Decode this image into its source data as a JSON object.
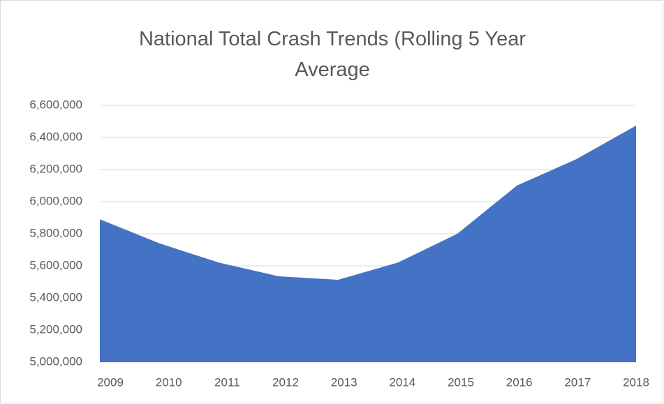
{
  "chart_data": {
    "type": "area",
    "title": "National Total Crash Trends (Rolling 5 Year Average",
    "categories": [
      "2009",
      "2010",
      "2011",
      "2012",
      "2013",
      "2014",
      "2015",
      "2016",
      "2017",
      "2018"
    ],
    "values": [
      5890000,
      5740000,
      5620000,
      5535000,
      5513000,
      5620000,
      5800000,
      6100000,
      6265000,
      6474000
    ],
    "color": "#4472c4",
    "ylim": [
      5000000,
      6600000
    ],
    "yticks": [
      {
        "value": 5000000,
        "label": "5,000,000"
      },
      {
        "value": 5200000,
        "label": "5,200,000"
      },
      {
        "value": 5400000,
        "label": "5,400,000"
      },
      {
        "value": 5600000,
        "label": "5,600,000"
      },
      {
        "value": 5800000,
        "label": "5,800,000"
      },
      {
        "value": 6000000,
        "label": "6,000,000"
      },
      {
        "value": 6200000,
        "label": "6,200,000"
      },
      {
        "value": 6400000,
        "label": "6,400,000"
      },
      {
        "value": 6600000,
        "label": "6,600,000"
      }
    ],
    "grid": true
  }
}
